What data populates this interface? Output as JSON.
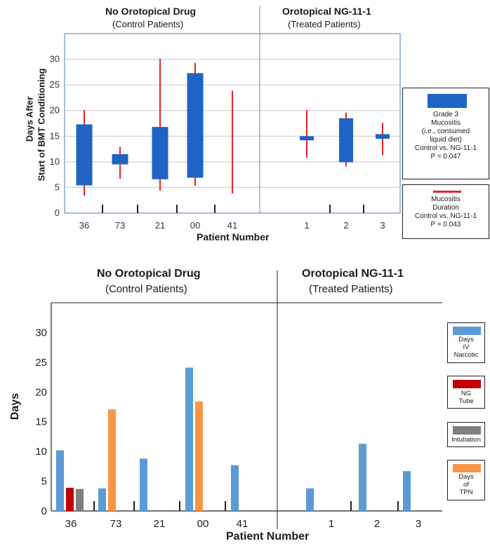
{
  "chart_data": [
    {
      "type": "floating-bar",
      "section_headers": [
        {
          "title": "No Orotopical Drug",
          "subtitle": "(Control Patients)"
        },
        {
          "title": "Orotopical NG-11-1",
          "subtitle": "(Treated Patients)"
        }
      ],
      "ylabel_line1": "Days After",
      "ylabel_line2": "Start of BMT Conditioning",
      "xlabel": "Patient Number",
      "ylim": [
        0,
        35
      ],
      "yticks": [
        0,
        5,
        10,
        15,
        20,
        25,
        30
      ],
      "ytick_labels": [
        "0",
        "5",
        "10",
        "15",
        "20",
        "25",
        "30"
      ],
      "categories": [
        "36",
        "73",
        "21",
        "00",
        "41",
        "1",
        "2",
        "3"
      ],
      "groups": [
        {
          "name": "Control Patients",
          "categories": [
            "36",
            "73",
            "21",
            "00",
            "41"
          ]
        },
        {
          "name": "Treated Patients",
          "categories": [
            "1",
            "2",
            "3"
          ]
        }
      ],
      "grid": true,
      "series": [
        {
          "legend_text": "Grade 3\nMucositis\n(i.e., consumed\nliquid diet)\nControl vs. NG-11-1\nP = 0.047",
          "kind": "range-bar",
          "color": "#1f63c4",
          "ranges": [
            [
              5.4,
              17.3
            ],
            [
              9.5,
              11.5
            ],
            [
              6.6,
              16.8
            ],
            [
              6.9,
              27.3
            ],
            null,
            [
              14.2,
              15.0
            ],
            [
              9.9,
              18.5
            ],
            [
              14.5,
              15.4
            ]
          ]
        },
        {
          "legend_text": "Mucositis\nDuration\nControl vs. NG-11-1\nP = 0.043",
          "kind": "range-line",
          "color": "#e8232a",
          "ranges": [
            [
              3.4,
              20.1
            ],
            [
              6.7,
              12.9
            ],
            [
              4.4,
              30.1
            ],
            [
              5.3,
              29.3
            ],
            [
              3.8,
              23.9
            ],
            [
              10.8,
              20.1
            ],
            [
              9.1,
              19.6
            ],
            [
              11.3,
              17.6
            ]
          ]
        }
      ]
    },
    {
      "type": "bar",
      "section_headers": [
        {
          "title": "No Orotopical Drug",
          "subtitle": "(Control Patients)"
        },
        {
          "title": "Orotopical NG-11-1",
          "subtitle": "(Treated Patients)"
        }
      ],
      "ylabel": "Days",
      "xlabel": "Patient Number",
      "ylim": [
        0,
        35
      ],
      "yticks": [
        0,
        5,
        10,
        15,
        20,
        25,
        30
      ],
      "ytick_labels": [
        "0",
        "5",
        "10",
        "15",
        "20",
        "25",
        "30"
      ],
      "categories": [
        "36",
        "73",
        "21",
        "00",
        "41",
        "1",
        "2",
        "3"
      ],
      "groups": [
        {
          "name": "Control Patients",
          "categories": [
            "36",
            "73",
            "21",
            "00",
            "41"
          ]
        },
        {
          "name": "Treated Patients",
          "categories": [
            "1",
            "2",
            "3"
          ]
        }
      ],
      "grid": false,
      "series": [
        {
          "legend_text": "Days\nIV\nNarcotic",
          "color": "#5b9bd5",
          "values": [
            10.2,
            3.8,
            8.8,
            24.1,
            7.7,
            3.8,
            11.3,
            6.7
          ]
        },
        {
          "legend_text": "NG\nTube",
          "color": "#c00000",
          "values": [
            3.9,
            0,
            0,
            0,
            0,
            0,
            0,
            0
          ]
        },
        {
          "legend_text": "Intubation",
          "color": "#7f7f7f",
          "values": [
            3.7,
            0,
            0,
            0,
            0,
            0,
            0,
            0
          ]
        },
        {
          "legend_text": "Days\nof\nTPN",
          "color": "#f79646",
          "values": [
            0,
            17.1,
            0,
            18.4,
            0,
            0,
            0,
            0
          ]
        }
      ]
    }
  ]
}
